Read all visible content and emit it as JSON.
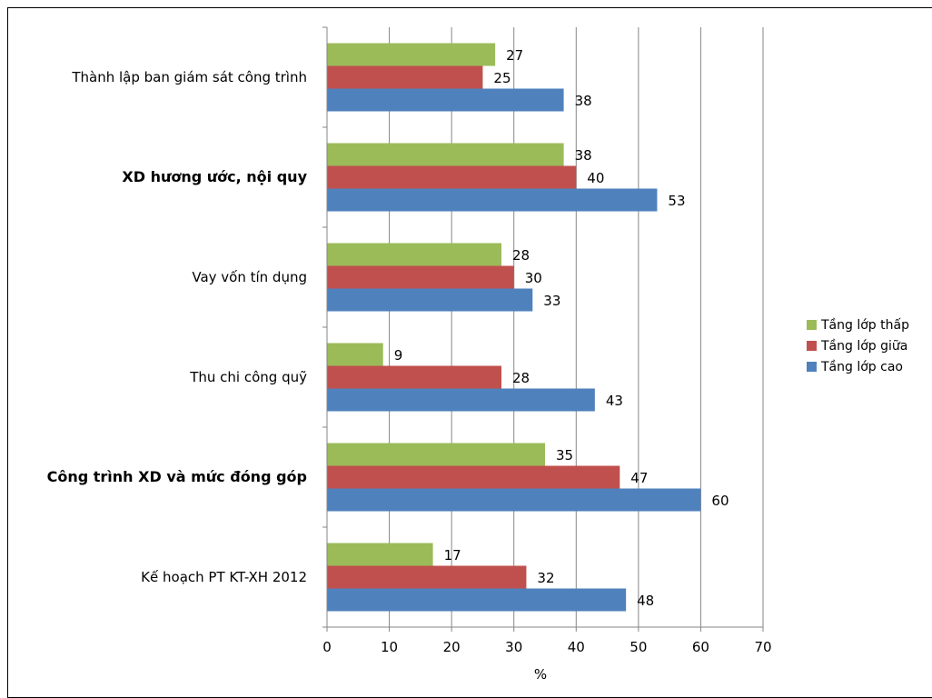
{
  "chart_data": {
    "type": "bar",
    "orientation": "horizontal",
    "categories": [
      "Thành lập ban giám sát công trình",
      "XD hương ước, nội quy",
      "Vay vốn tín dụng",
      "Thu chi công quỹ",
      "Công trình XD và mức đóng góp",
      "Kế hoạch PT KT-XH 2012"
    ],
    "bold_categories": [
      false,
      true,
      false,
      false,
      true,
      false
    ],
    "series": [
      {
        "name": "Tầng lớp thấp",
        "color": "#9BBB59",
        "values": [
          27,
          38,
          28,
          9,
          35,
          17
        ]
      },
      {
        "name": "Tầng lớp giữa",
        "color": "#C0504D",
        "values": [
          25,
          40,
          30,
          28,
          47,
          32
        ]
      },
      {
        "name": "Tầng lớp cao",
        "color": "#4F81BD",
        "values": [
          38,
          53,
          33,
          43,
          60,
          48
        ]
      }
    ],
    "xlabel": "%",
    "ylabel": "",
    "xlim": [
      0,
      70
    ],
    "xticks": [
      0,
      10,
      20,
      30,
      40,
      50,
      60,
      70
    ],
    "grid": "vertical",
    "legend_position": "right",
    "data_labels": true
  }
}
